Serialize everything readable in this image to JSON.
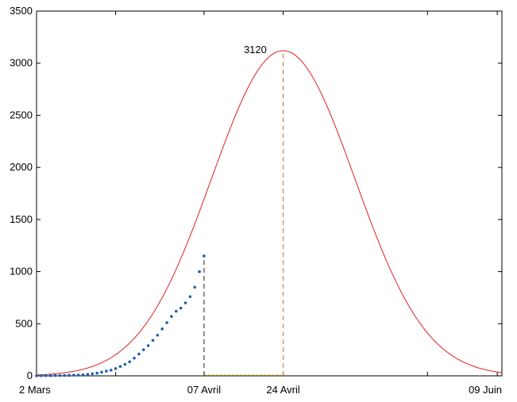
{
  "chart_data": {
    "type": "line",
    "title": "",
    "xlabel": "",
    "ylabel": "",
    "xlim": [
      0,
      100
    ],
    "ylim": [
      0,
      3500
    ],
    "grid": false,
    "y_ticks": [
      0,
      500,
      1000,
      1500,
      2000,
      2500,
      3000,
      3500
    ],
    "x_tick_labels": [
      {
        "x": 0,
        "label": "2 Mars"
      },
      {
        "x": 36,
        "label": "07 Avril"
      },
      {
        "x": 53,
        "label": "24 Avril"
      },
      {
        "x": 99,
        "label": "09 Juin"
      }
    ],
    "x_ticks_unlabeled": [
      17,
      84
    ],
    "series": [
      {
        "kind": "model_curve",
        "color": "#e02020",
        "peak_day": 53,
        "peak_value": 3120,
        "spread_days": 15.4
      },
      {
        "kind": "observed_points",
        "color": "#1f5fb4",
        "x": [
          0,
          1,
          2,
          3,
          4,
          5,
          6,
          7,
          8,
          9,
          10,
          11,
          12,
          13,
          14,
          15,
          16,
          17,
          18,
          19,
          20,
          21,
          22,
          23,
          24,
          25,
          26,
          27,
          28,
          29,
          30,
          31,
          32,
          33,
          34,
          35,
          36
        ],
        "y": [
          0,
          1,
          2,
          2,
          3,
          3,
          4,
          5,
          6,
          8,
          10,
          14,
          20,
          26,
          35,
          45,
          55,
          70,
          90,
          110,
          135,
          170,
          210,
          250,
          290,
          340,
          390,
          450,
          510,
          570,
          620,
          650,
          700,
          760,
          850,
          1000,
          1150
        ]
      }
    ],
    "markers": [
      {
        "x": 36,
        "y": 1120,
        "color": "#222222",
        "style": "dashed"
      },
      {
        "x": 53,
        "y": 3120,
        "color": "#d26e28",
        "style": "dashed"
      }
    ],
    "baseline_segment": {
      "from": 36,
      "to": 53,
      "color": "#e8c33a",
      "style": "dashed"
    },
    "annotations": [
      {
        "text": "3120",
        "x": 47,
        "y": 3120
      }
    ]
  }
}
